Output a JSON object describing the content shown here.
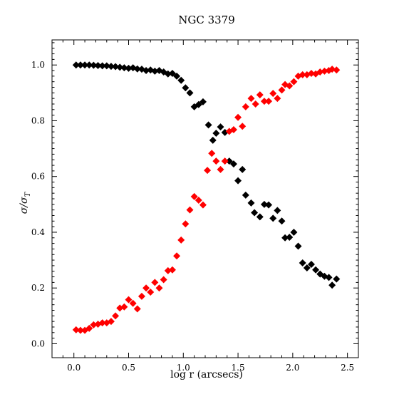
{
  "chart_data": {
    "type": "scatter",
    "title": "NGC 3379",
    "xlabel": "log r (arcsecs)",
    "ylabel": "σ/σ_T",
    "xlim": [
      -0.2,
      2.6
    ],
    "ylim": [
      -0.05,
      1.09
    ],
    "xticks": [
      0.0,
      0.5,
      1.0,
      1.5,
      2.0,
      2.5
    ],
    "xtick_labels": [
      "0.0",
      "0.5",
      "1.0",
      "1.5",
      "2.0",
      "2.5"
    ],
    "yticks": [
      0.0,
      0.2,
      0.4,
      0.6,
      0.8,
      1.0
    ],
    "ytick_labels": [
      "0.0",
      "0.2",
      "0.4",
      "0.6",
      "0.8",
      "1.0"
    ],
    "grid": false,
    "legend": "none",
    "marker": "diamond",
    "series": [
      {
        "color": "#000000",
        "points": [
          [
            0.02,
            1.0
          ],
          [
            0.06,
            1.0
          ],
          [
            0.1,
            1.0
          ],
          [
            0.14,
            1.0
          ],
          [
            0.18,
            0.999
          ],
          [
            0.22,
            0.998
          ],
          [
            0.26,
            0.997
          ],
          [
            0.3,
            0.997
          ],
          [
            0.34,
            0.995
          ],
          [
            0.38,
            0.994
          ],
          [
            0.42,
            0.992
          ],
          [
            0.46,
            0.99
          ],
          [
            0.5,
            0.988
          ],
          [
            0.54,
            0.99
          ],
          [
            0.58,
            0.986
          ],
          [
            0.62,
            0.985
          ],
          [
            0.66,
            0.98
          ],
          [
            0.7,
            0.982
          ],
          [
            0.74,
            0.978
          ],
          [
            0.78,
            0.98
          ],
          [
            0.82,
            0.975
          ],
          [
            0.86,
            0.968
          ],
          [
            0.9,
            0.97
          ],
          [
            0.94,
            0.96
          ],
          [
            0.98,
            0.945
          ],
          [
            1.02,
            0.918
          ],
          [
            1.06,
            0.9
          ],
          [
            1.1,
            0.85
          ],
          [
            1.14,
            0.858
          ],
          [
            1.18,
            0.868
          ],
          [
            1.23,
            0.785
          ],
          [
            1.27,
            0.73
          ],
          [
            1.3,
            0.755
          ],
          [
            1.34,
            0.778
          ],
          [
            1.38,
            0.758
          ],
          [
            1.42,
            0.655
          ],
          [
            1.46,
            0.645
          ],
          [
            1.5,
            0.585
          ],
          [
            1.54,
            0.625
          ],
          [
            1.57,
            0.533
          ],
          [
            1.62,
            0.505
          ],
          [
            1.65,
            0.47
          ],
          [
            1.7,
            0.455
          ],
          [
            1.74,
            0.5
          ],
          [
            1.78,
            0.498
          ],
          [
            1.82,
            0.45
          ],
          [
            1.86,
            0.478
          ],
          [
            1.9,
            0.44
          ],
          [
            1.93,
            0.38
          ],
          [
            1.97,
            0.382
          ],
          [
            2.01,
            0.4
          ],
          [
            2.05,
            0.35
          ],
          [
            2.09,
            0.29
          ],
          [
            2.13,
            0.272
          ],
          [
            2.17,
            0.285
          ],
          [
            2.21,
            0.265
          ],
          [
            2.25,
            0.25
          ],
          [
            2.29,
            0.242
          ],
          [
            2.33,
            0.238
          ],
          [
            2.36,
            0.21
          ],
          [
            2.4,
            0.232
          ]
        ]
      },
      {
        "color": "#ff0000",
        "points": [
          [
            0.02,
            0.05
          ],
          [
            0.06,
            0.048
          ],
          [
            0.1,
            0.048
          ],
          [
            0.14,
            0.055
          ],
          [
            0.18,
            0.068
          ],
          [
            0.22,
            0.07
          ],
          [
            0.26,
            0.075
          ],
          [
            0.3,
            0.075
          ],
          [
            0.34,
            0.08
          ],
          [
            0.38,
            0.1
          ],
          [
            0.42,
            0.128
          ],
          [
            0.46,
            0.132
          ],
          [
            0.5,
            0.158
          ],
          [
            0.54,
            0.145
          ],
          [
            0.58,
            0.125
          ],
          [
            0.62,
            0.17
          ],
          [
            0.66,
            0.2
          ],
          [
            0.7,
            0.185
          ],
          [
            0.74,
            0.22
          ],
          [
            0.78,
            0.2
          ],
          [
            0.82,
            0.23
          ],
          [
            0.86,
            0.262
          ],
          [
            0.9,
            0.265
          ],
          [
            0.94,
            0.315
          ],
          [
            0.98,
            0.372
          ],
          [
            1.02,
            0.43
          ],
          [
            1.06,
            0.48
          ],
          [
            1.1,
            0.528
          ],
          [
            1.14,
            0.515
          ],
          [
            1.18,
            0.498
          ],
          [
            1.22,
            0.622
          ],
          [
            1.26,
            0.683
          ],
          [
            1.3,
            0.655
          ],
          [
            1.34,
            0.625
          ],
          [
            1.38,
            0.655
          ],
          [
            1.42,
            0.762
          ],
          [
            1.46,
            0.768
          ],
          [
            1.5,
            0.812
          ],
          [
            1.54,
            0.78
          ],
          [
            1.57,
            0.85
          ],
          [
            1.62,
            0.88
          ],
          [
            1.66,
            0.86
          ],
          [
            1.7,
            0.893
          ],
          [
            1.74,
            0.87
          ],
          [
            1.78,
            0.87
          ],
          [
            1.82,
            0.898
          ],
          [
            1.86,
            0.88
          ],
          [
            1.9,
            0.91
          ],
          [
            1.93,
            0.93
          ],
          [
            1.97,
            0.925
          ],
          [
            2.01,
            0.94
          ],
          [
            2.05,
            0.96
          ],
          [
            2.09,
            0.965
          ],
          [
            2.13,
            0.965
          ],
          [
            2.17,
            0.97
          ],
          [
            2.21,
            0.968
          ],
          [
            2.25,
            0.975
          ],
          [
            2.29,
            0.978
          ],
          [
            2.33,
            0.98
          ],
          [
            2.36,
            0.985
          ],
          [
            2.4,
            0.982
          ]
        ]
      }
    ]
  }
}
